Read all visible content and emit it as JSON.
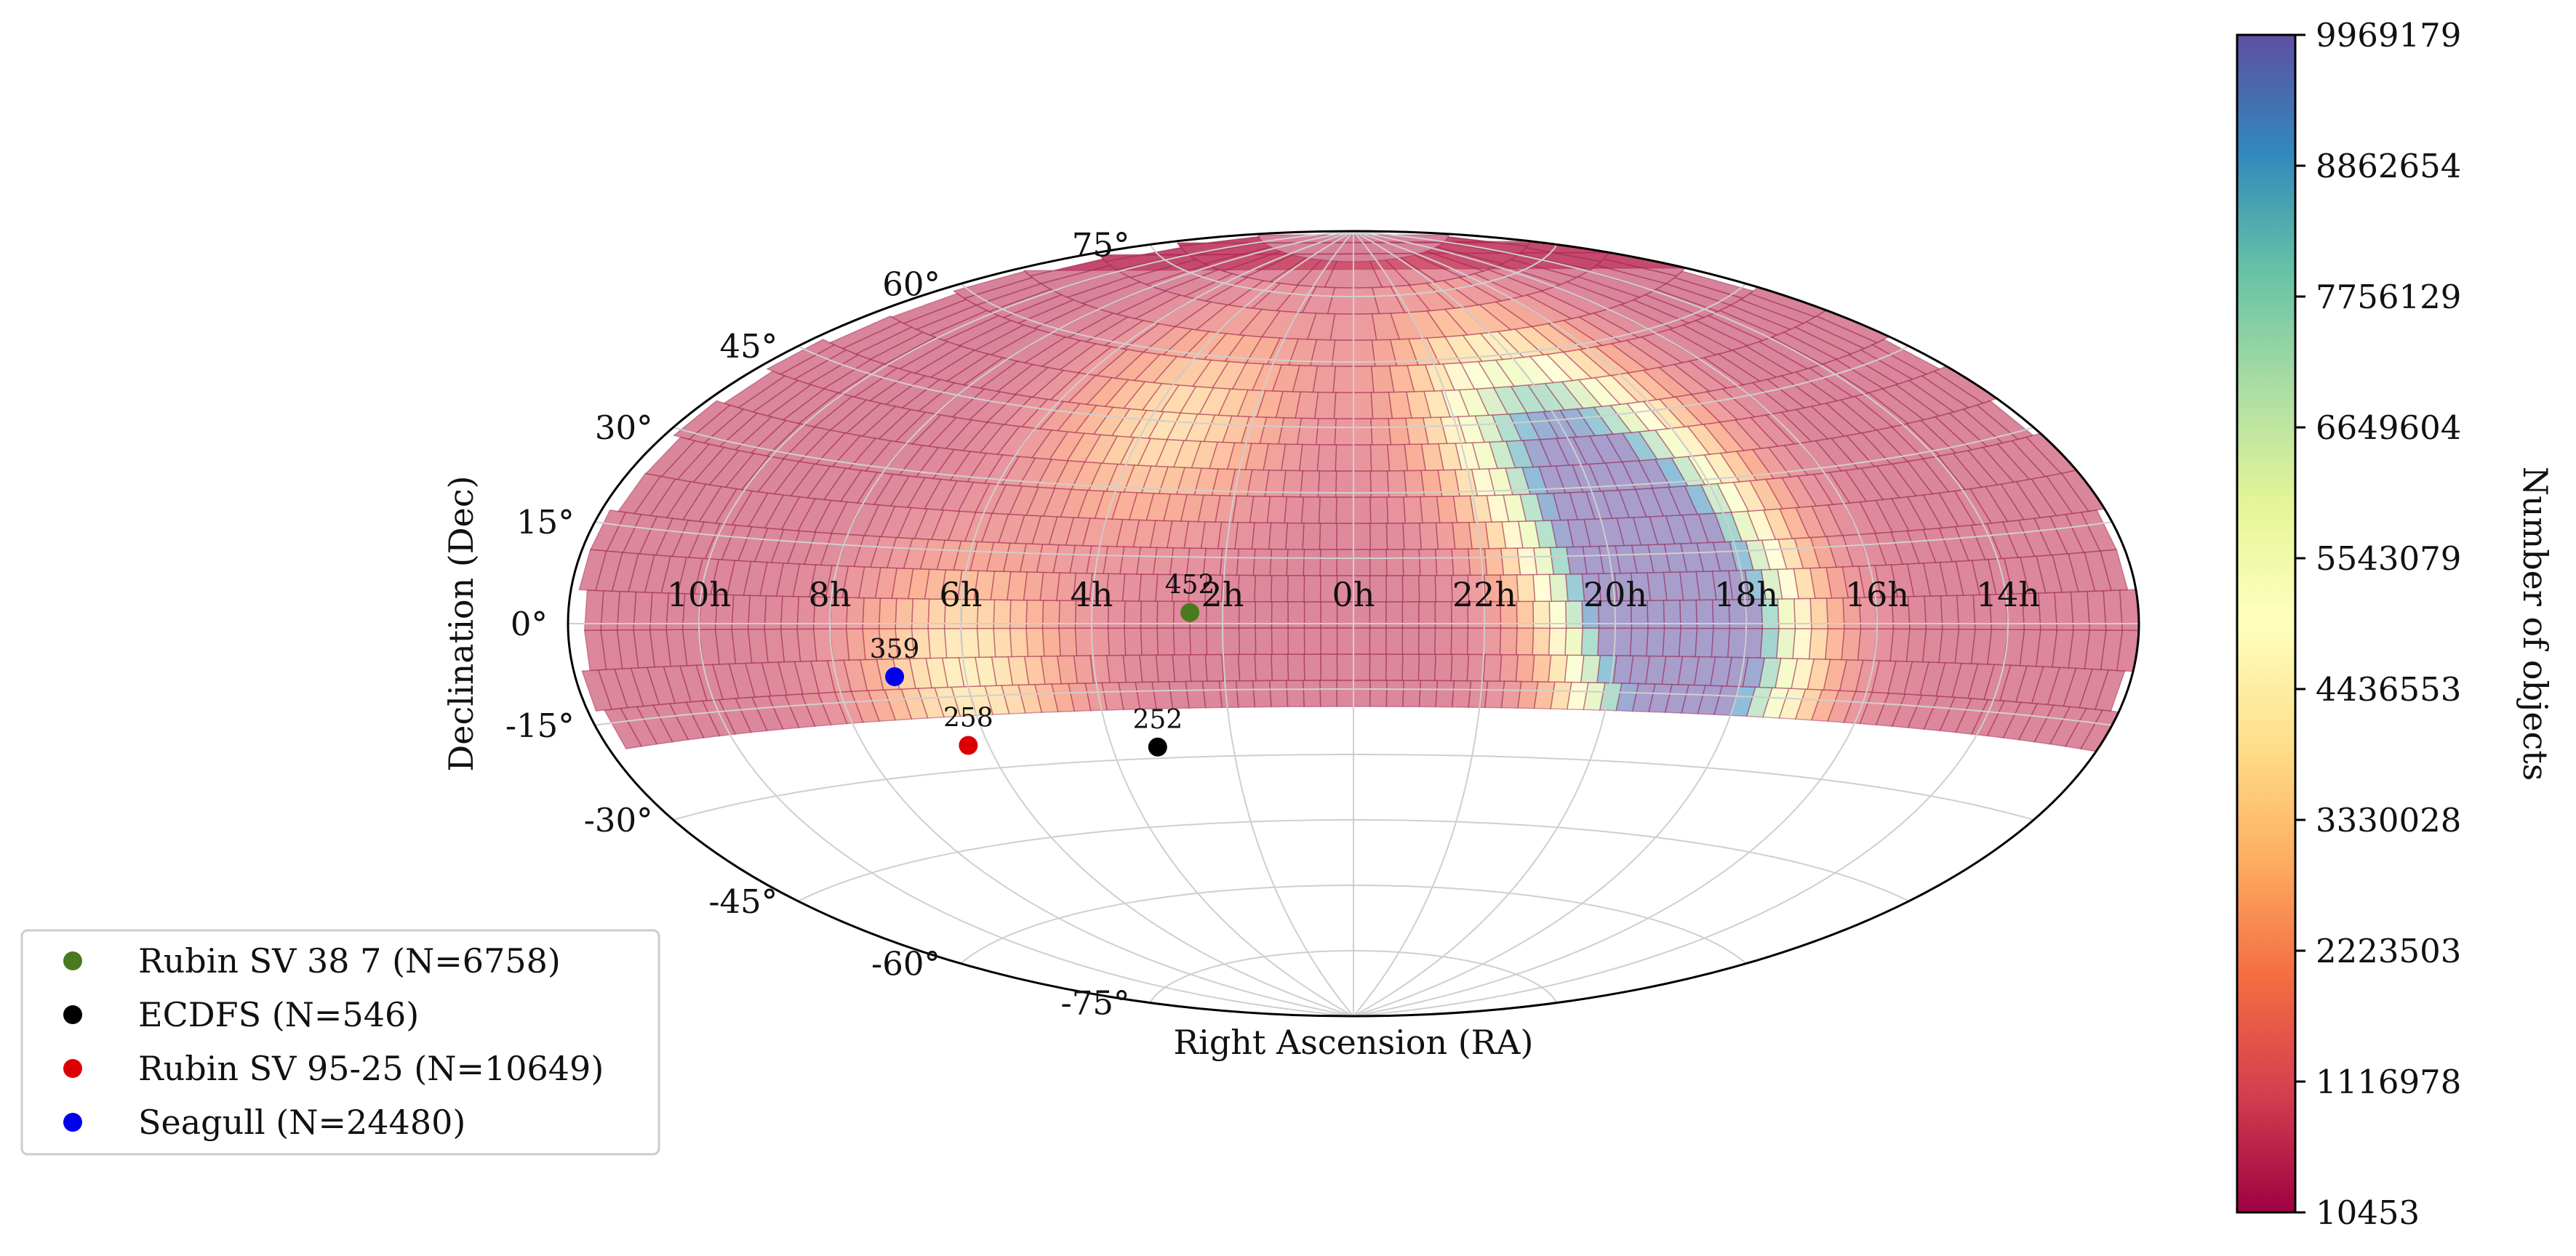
{
  "chart_data": {
    "type": "heatmap",
    "projection": "aitoff",
    "xlabel": "Right Ascension (RA)",
    "ylabel": "Declination (Dec)",
    "ra_tick_labels": [
      "14h",
      "16h",
      "18h",
      "20h",
      "22h",
      "0h",
      "2h",
      "4h",
      "6h",
      "8h",
      "10h"
    ],
    "dec_tick_labels": [
      "-75°",
      "-60°",
      "-45°",
      "-30°",
      "-15°",
      "0°",
      "15°",
      "30°",
      "45°",
      "60°",
      "75°"
    ],
    "grid": true,
    "coverage_dec_range": [
      -19,
      90
    ],
    "density_hotspots": [
      {
        "ra_hours": 18.7,
        "dec_deg": -12,
        "level": 9500000
      },
      {
        "ra_hours": 19.2,
        "dec_deg": 8,
        "level": 9000000
      },
      {
        "ra_hours": 19.6,
        "dec_deg": 25,
        "level": 7000000
      },
      {
        "ra_hours": 20.5,
        "dec_deg": 45,
        "level": 5500000
      },
      {
        "ra_hours": 6.0,
        "dec_deg": -10,
        "level": 3500000
      },
      {
        "ra_hours": 3.5,
        "dec_deg": 45,
        "level": 3000000
      }
    ],
    "colorbar": {
      "label": "Number of objects",
      "min": 10453,
      "max": 9969179,
      "ticks": [
        "10453",
        "1116978",
        "2223503",
        "3330028",
        "4436553",
        "5543079",
        "6649604",
        "7756129",
        "8862654",
        "9969179"
      ],
      "colormap": "Spectral"
    },
    "points": [
      {
        "name": "Rubin SV 38 7 (N=6758)",
        "ra_hours": 2.5,
        "dec_deg": 2.5,
        "label": "452",
        "color": "#4a7a1e"
      },
      {
        "name": "ECDFS (N=546)",
        "ra_hours": 3.25,
        "dec_deg": -27.5,
        "label": "252",
        "color": "#000000"
      },
      {
        "name": "Rubin SV 95-25 (N=10649)",
        "ra_hours": 6.33,
        "dec_deg": -25,
        "label": "258",
        "color": "#dd0000"
      },
      {
        "name": "Seagull (N=24480)",
        "ra_hours": 7.1,
        "dec_deg": -10.5,
        "label": "359",
        "color": "#0000ee"
      }
    ],
    "legend_position": "lower-left"
  }
}
